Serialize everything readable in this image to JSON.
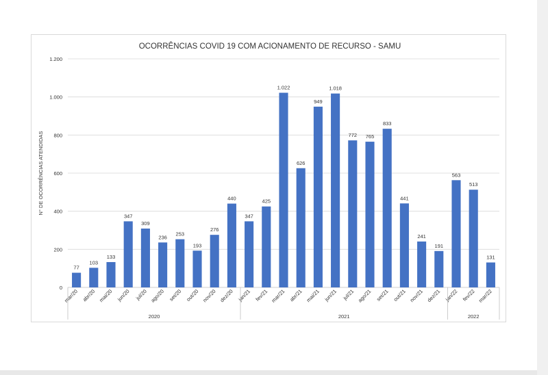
{
  "chart_data": {
    "type": "bar",
    "title": "OCORRÊNCIAS COVID 19 COM ACIONAMENTO DE RECURSO - SAMU",
    "ylabel": "N° DE OCORRÊNCIAS ATENDIDAS",
    "xlabel": "",
    "ylim": [
      0,
      1200
    ],
    "yticks": [
      0,
      200,
      400,
      600,
      800,
      1000,
      1200
    ],
    "ytick_labels": [
      "0",
      "200",
      "400",
      "600",
      "800",
      "1.000",
      "1.200"
    ],
    "grid": true,
    "bar_color": "#4472c4",
    "categories": [
      "mar/20",
      "abr/20",
      "mai/20",
      "jun/20",
      "jul/20",
      "ago/20",
      "set/20",
      "out/20",
      "nov/20",
      "dez/20",
      "jan/21",
      "fev/21",
      "mar/21",
      "abr/21",
      "mai/21",
      "jun/21",
      "jul/21",
      "ago/21",
      "set/21",
      "out/21",
      "nov/21",
      "dez/21",
      "jan/22",
      "fev/22",
      "mar/22"
    ],
    "values": [
      77,
      103,
      133,
      347,
      309,
      236,
      253,
      193,
      276,
      440,
      347,
      425,
      1022,
      626,
      949,
      1018,
      772,
      765,
      833,
      441,
      241,
      191,
      563,
      513,
      131
    ],
    "value_labels": [
      "77",
      "103",
      "133",
      "347",
      "309",
      "236",
      "253",
      "193",
      "276",
      "440",
      "347",
      "425",
      "1.022",
      "626",
      "949",
      "1.018",
      "772",
      "765",
      "833",
      "441",
      "241",
      "191",
      "563",
      "513",
      "131"
    ],
    "groups": [
      {
        "label": "2020",
        "count": 10
      },
      {
        "label": "2021",
        "count": 12
      },
      {
        "label": "2022",
        "count": 3
      }
    ]
  }
}
